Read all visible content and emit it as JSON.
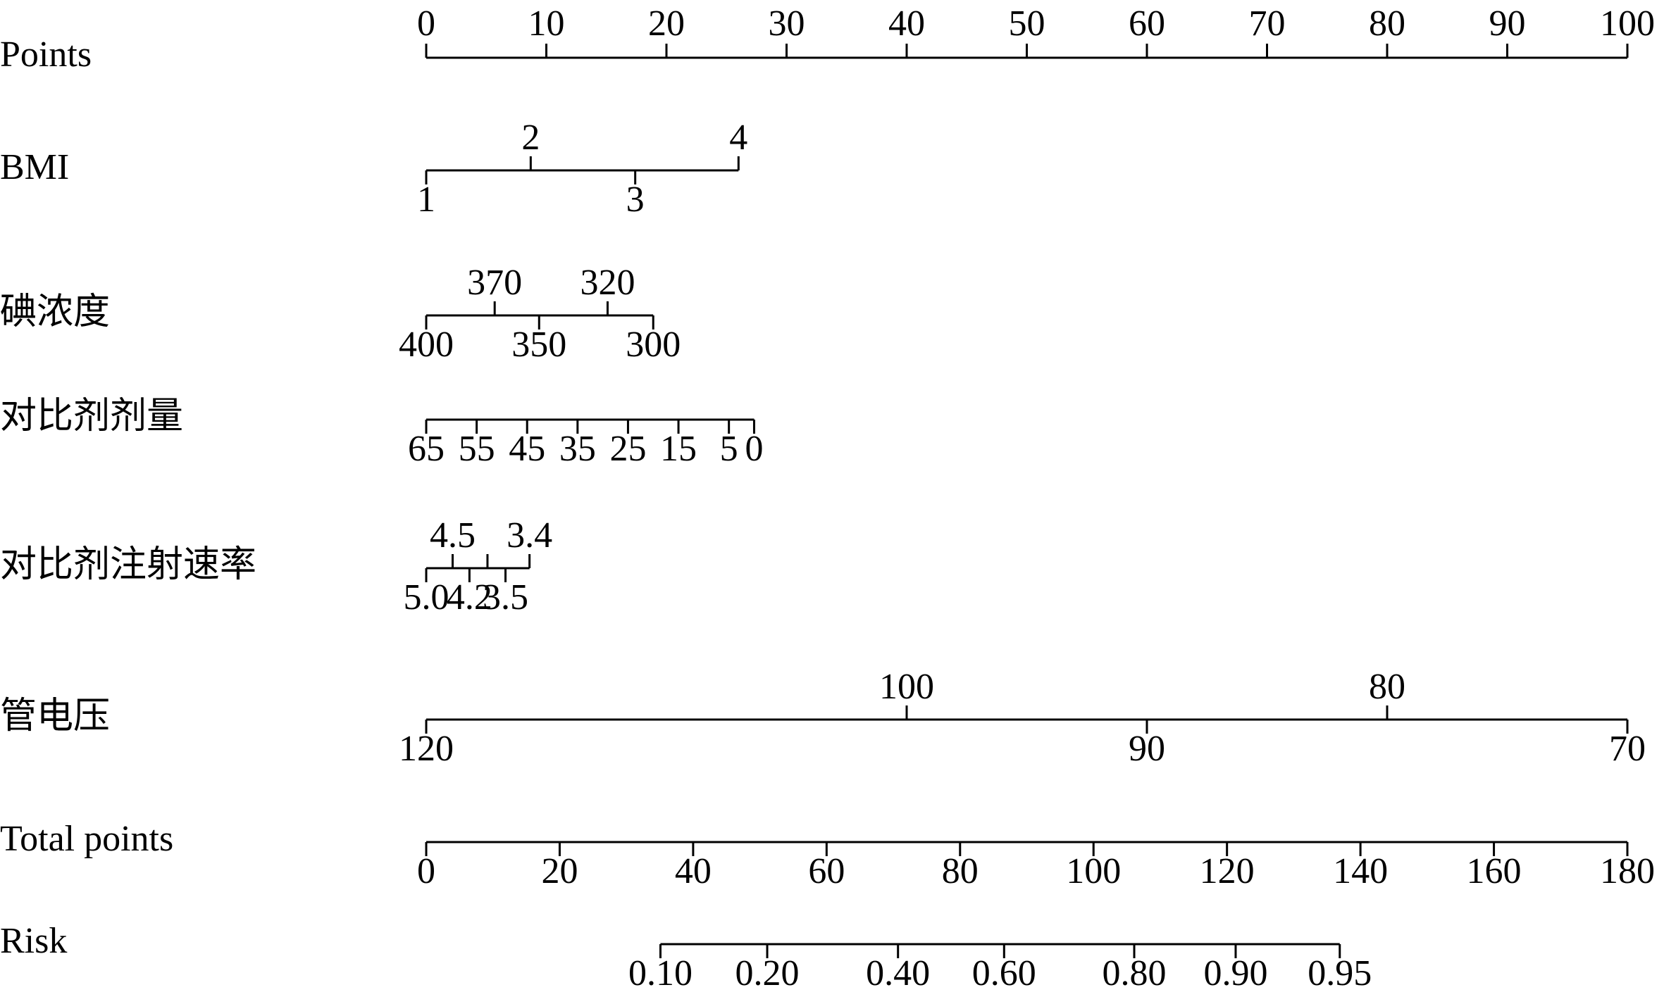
{
  "chart_data": {
    "type": "nomogram",
    "points_axis": {
      "name": "Points",
      "xlim": [
        0,
        100
      ],
      "ticks": [
        0,
        10,
        20,
        30,
        40,
        50,
        60,
        70,
        80,
        90,
        100
      ]
    },
    "total_axis": {
      "name": "Total points",
      "xlim": [
        0,
        180
      ],
      "ticks": [
        0,
        20,
        40,
        60,
        80,
        100,
        120,
        140,
        160,
        180
      ]
    },
    "rows": [
      {
        "name": "BMI",
        "scale": "points",
        "alternate": true,
        "ticks": [
          {
            "value": 1,
            "points": 0
          },
          {
            "value": 2,
            "points": 8.7
          },
          {
            "value": 3,
            "points": 17.4
          },
          {
            "value": 4,
            "points": 26
          }
        ]
      },
      {
        "name": "碘浓度",
        "scale": "points",
        "alternate": true,
        "ticks": [
          {
            "value": 400,
            "points": 0
          },
          {
            "value": 370,
            "points": 5.7
          },
          {
            "value": 350,
            "points": 9.4
          },
          {
            "value": 320,
            "points": 15.1
          },
          {
            "value": 300,
            "points": 18.9
          }
        ]
      },
      {
        "name": "对比剂剂量",
        "scale": "points",
        "alternate": false,
        "ticks": [
          {
            "value": 65,
            "points": 0
          },
          {
            "value": 55,
            "points": 4.2
          },
          {
            "value": 45,
            "points": 8.4
          },
          {
            "value": 35,
            "points": 12.6
          },
          {
            "value": 25,
            "points": 16.8
          },
          {
            "value": 15,
            "points": 21
          },
          {
            "value": 5,
            "points": 25.2
          },
          {
            "value": 0,
            "points": 27.3
          }
        ]
      },
      {
        "name": "对比剂注射速率",
        "scale": "points",
        "alternate": true,
        "ticks": [
          {
            "value": 5,
            "label": "5.0",
            "points": 0
          },
          {
            "value": 4.5,
            "points": 2.2
          },
          {
            "value": 4.2,
            "points": 3.6
          },
          {
            "value": null,
            "points": 5.1
          },
          {
            "value": 3.5,
            "points": 6.6
          },
          {
            "value": 3.4,
            "points": 8.6
          }
        ]
      },
      {
        "name": "管电压",
        "scale": "points",
        "alternate": true,
        "ticks": [
          {
            "value": 120,
            "points": 0
          },
          {
            "value": 100,
            "points": 40
          },
          {
            "value": 90,
            "points": 60
          },
          {
            "value": 80,
            "points": 80
          },
          {
            "value": 70,
            "points": 100
          }
        ]
      },
      {
        "name": "Risk",
        "scale": "total",
        "alternate": false,
        "ticks": [
          {
            "value": 0.1,
            "label": "0.10",
            "points": 35.1
          },
          {
            "value": 0.2,
            "label": "0.20",
            "points": 51.1
          },
          {
            "value": 0.4,
            "label": "0.40",
            "points": 70.7
          },
          {
            "value": 0.6,
            "label": "0.60",
            "points": 86.6
          },
          {
            "value": 0.8,
            "label": "0.80",
            "points": 106.1
          },
          {
            "value": 0.9,
            "label": "0.90",
            "points": 121.3
          },
          {
            "value": 0.95,
            "label": "0.95",
            "points": 136.9
          }
        ]
      }
    ]
  }
}
